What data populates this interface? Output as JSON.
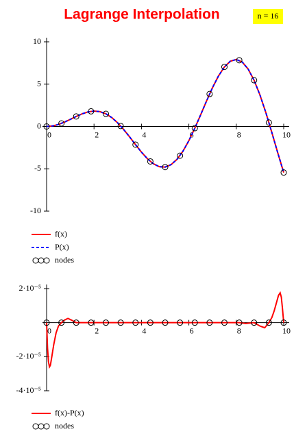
{
  "chart_data": [
    {
      "type": "line",
      "title": "Lagrange Interpolation",
      "annotation": "n = 16",
      "x": [
        0,
        0.25,
        0.5,
        0.75,
        1,
        1.25,
        1.5,
        1.75,
        2,
        2.25,
        2.5,
        2.75,
        3,
        3.25,
        3.5,
        3.75,
        4,
        4.25,
        4.5,
        4.75,
        5,
        5.25,
        5.5,
        5.75,
        6,
        6.25,
        6.5,
        6.75,
        7,
        7.25,
        7.5,
        7.75,
        8,
        8.25,
        8.5,
        8.75,
        9,
        9.25,
        9.5,
        9.75,
        10
      ],
      "series": [
        {
          "name": "f(x)",
          "color": "#ff0000",
          "style": "solid",
          "values": [
            0,
            0.062,
            0.24,
            0.511,
            0.841,
            1.186,
            1.496,
            1.722,
            1.819,
            1.751,
            1.496,
            1.05,
            0.423,
            -0.352,
            -1.228,
            -2.144,
            -3.027,
            -3.804,
            -4.399,
            -4.747,
            -4.795,
            -4.509,
            -3.88,
            -2.923,
            -1.676,
            -0.207,
            1.398,
            3.038,
            4.599,
            5.967,
            7.035,
            7.708,
            7.915,
            7.613,
            6.787,
            5.463,
            3.709,
            1.612,
            -0.714,
            -3.119,
            -5.44
          ]
        },
        {
          "name": "P(x)",
          "color": "#0000ff",
          "style": "dashed",
          "values": [
            0,
            0.062,
            0.24,
            0.511,
            0.841,
            1.186,
            1.496,
            1.722,
            1.819,
            1.751,
            1.496,
            1.05,
            0.423,
            -0.352,
            -1.228,
            -2.144,
            -3.027,
            -3.804,
            -4.399,
            -4.747,
            -4.795,
            -4.509,
            -3.88,
            -2.923,
            -1.676,
            -0.207,
            1.398,
            3.038,
            4.599,
            5.967,
            7.035,
            7.708,
            7.915,
            7.613,
            6.787,
            5.463,
            3.709,
            1.612,
            -0.714,
            -3.119,
            -5.44
          ]
        },
        {
          "name": "nodes",
          "color": "#000000",
          "style": "circle",
          "x": [
            0,
            0.625,
            1.25,
            1.875,
            2.5,
            3.125,
            3.75,
            4.375,
            5,
            5.625,
            6.25,
            6.875,
            7.5,
            8.125,
            8.75,
            9.375,
            10
          ],
          "values": [
            0,
            0.366,
            1.186,
            1.789,
            1.496,
            0.052,
            -2.144,
            -4.129,
            -4.795,
            -3.451,
            -0.207,
            3.835,
            7.035,
            7.828,
            5.463,
            0.466,
            -5.44
          ]
        }
      ],
      "xlim": [
        0,
        10
      ],
      "xticks": [
        0,
        2,
        4,
        6,
        8,
        10
      ],
      "ylim": [
        -10,
        10
      ],
      "yticks": [
        -10,
        -5,
        0,
        5,
        10
      ]
    },
    {
      "type": "line",
      "x": [
        0,
        0.04,
        0.08,
        0.12,
        0.16,
        0.22,
        0.3,
        0.4,
        0.5,
        0.625,
        0.75,
        0.9,
        1.05,
        1.25,
        1.875,
        2.5,
        3.125,
        3.75,
        4.375,
        5,
        5.625,
        6.25,
        6.875,
        7.5,
        8.125,
        8.4,
        8.75,
        9,
        9.2,
        9.375,
        9.5,
        9.6,
        9.7,
        9.78,
        9.85,
        9.9,
        9.95,
        10
      ],
      "series": [
        {
          "name": "f(x)-P(x)",
          "color": "#ff0000",
          "style": "solid",
          "values": [
            0,
            -1.5e-05,
            -2.3e-05,
            -2.6e-05,
            -2.5e-05,
            -2e-05,
            -1.3e-05,
            -6e-06,
            -2e-06,
            0,
            1.5e-06,
            2.5e-06,
            1.5e-06,
            0,
            0,
            0,
            0,
            0,
            0,
            0,
            0,
            0,
            0,
            0,
            0,
            -5e-07,
            0,
            -2e-06,
            -3e-06,
            0,
            3e-06,
            7e-06,
            1.2e-05,
            1.6e-05,
            1.75e-05,
            1.5e-05,
            8e-06,
            0
          ]
        },
        {
          "name": "nodes",
          "color": "#000000",
          "style": "circle",
          "x": [
            0,
            0.625,
            1.25,
            1.875,
            2.5,
            3.125,
            3.75,
            4.375,
            5,
            5.625,
            6.25,
            6.875,
            7.5,
            8.125,
            8.75,
            9.375,
            10
          ],
          "values": [
            0,
            0,
            0,
            0,
            0,
            0,
            0,
            0,
            0,
            0,
            0,
            0,
            0,
            0,
            0,
            0,
            0
          ]
        }
      ],
      "xlim": [
        0,
        10
      ],
      "xticks": [
        0,
        2,
        4,
        6,
        8,
        10
      ],
      "ylim": [
        -4e-05,
        2e-05
      ],
      "yticks": [
        {
          "value": -4e-05,
          "label": "-4·10⁻⁵"
        },
        {
          "value": -2e-05,
          "label": "-2·10⁻⁵"
        },
        {
          "value": 2e-05,
          "label": "2·10⁻⁵"
        }
      ]
    }
  ]
}
